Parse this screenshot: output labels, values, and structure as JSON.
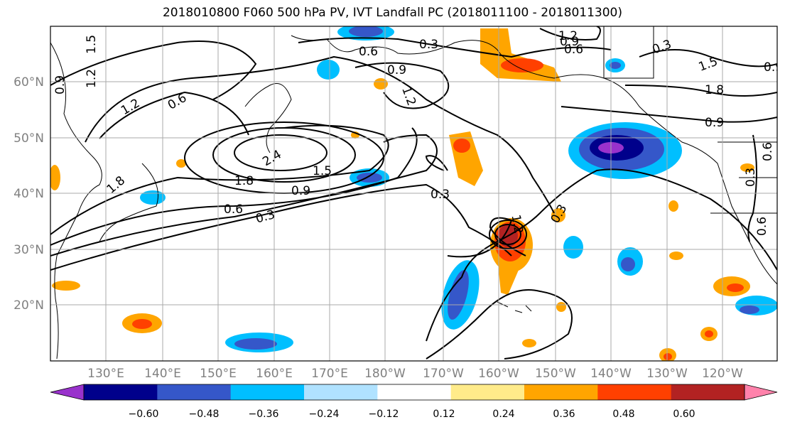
{
  "title": "2018010800 F060 500 hPa PV, IVT Landfall PC (2018011100 - 2018011300)",
  "lat_labels": [
    "60°N",
    "50°N",
    "40°N",
    "30°N",
    "20°N"
  ],
  "lon_labels": [
    "130°E",
    "140°E",
    "150°E",
    "160°E",
    "170°E",
    "180°W",
    "170°W",
    "160°W",
    "150°W",
    "140°W",
    "130°W",
    "120°W"
  ],
  "colorbar": {
    "colors": [
      "#9932cc",
      "#00008b",
      "#3557c9",
      "#00bfff",
      "#b0e2ff",
      "#ffffff",
      "#ffeb8a",
      "#ffa500",
      "#ff4000",
      "#b22222",
      "#ff82ab"
    ],
    "tick_labels": [
      "−0.60",
      "−0.48",
      "−0.36",
      "−0.24",
      "−0.12",
      "0.12",
      "0.24",
      "0.36",
      "0.48",
      "0.60"
    ]
  },
  "contour_labels": [
    "1.5",
    "1.2",
    "0.9",
    "1.2",
    "0.6",
    "1.8",
    "2.4",
    "1.8",
    "1.5",
    "0.9",
    "0.6",
    "0.3",
    "0.6",
    "0.9",
    "1.2",
    "0.3",
    "1.2",
    "0.9",
    "0.6",
    "0.3",
    "0.3",
    "1.5",
    "1.8",
    "0.9",
    "0.3",
    "1.2",
    "0.3",
    "0.6",
    "0.6",
    "0.9"
  ]
}
